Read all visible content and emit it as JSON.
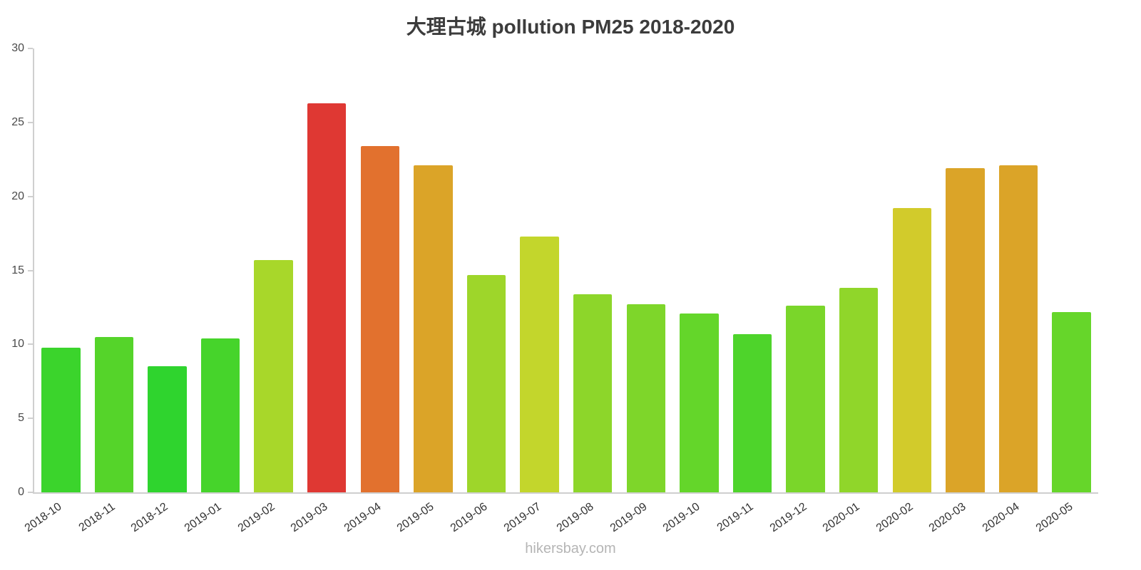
{
  "title": "大理古城 pollution PM25 2018-2020",
  "footer": "hikersbay.com",
  "colors": {
    "axis": "#cfcfcf",
    "title_text": "#3c3c3c",
    "tick_text": "#4a4a4a",
    "x_label_text": "#333333",
    "watermark_text": "#b5b5b5"
  },
  "chart_data": {
    "type": "bar",
    "title": "大理古城 pollution PM25 2018-2020",
    "categories": [
      "2018-10",
      "2018-11",
      "2018-12",
      "2019-01",
      "2019-02",
      "2019-03",
      "2019-04",
      "2019-05",
      "2019-06",
      "2019-07",
      "2019-08",
      "2019-09",
      "2019-10",
      "2019-11",
      "2019-12",
      "2020-01",
      "2020-02",
      "2020-03",
      "2020-04",
      "2020-05"
    ],
    "values": [
      9.8,
      10.5,
      8.5,
      10.4,
      15.7,
      26.3,
      23.4,
      22.1,
      14.7,
      17.3,
      13.4,
      12.7,
      12.1,
      10.7,
      12.6,
      13.8,
      19.2,
      21.9,
      22.1,
      12.2
    ],
    "bar_colors": [
      "#3bd42c",
      "#55d42a",
      "#2fd42e",
      "#46d42b",
      "#a8d72a",
      "#df3833",
      "#e2712e",
      "#dba428",
      "#9ed62a",
      "#c3d62c",
      "#8dd62a",
      "#7ed62a",
      "#64d62a",
      "#4ed42b",
      "#7ad62a",
      "#90d62a",
      "#d2cb2b",
      "#dba428",
      "#dba428",
      "#66d62a"
    ],
    "xlabel": "",
    "ylabel": "",
    "ylim": [
      0,
      30
    ],
    "yticks": [
      0,
      5,
      10,
      15,
      20,
      25,
      30
    ],
    "grid": false,
    "legend": false,
    "x_label_rotation_deg": -35,
    "watermark": "hikersbay.com"
  }
}
